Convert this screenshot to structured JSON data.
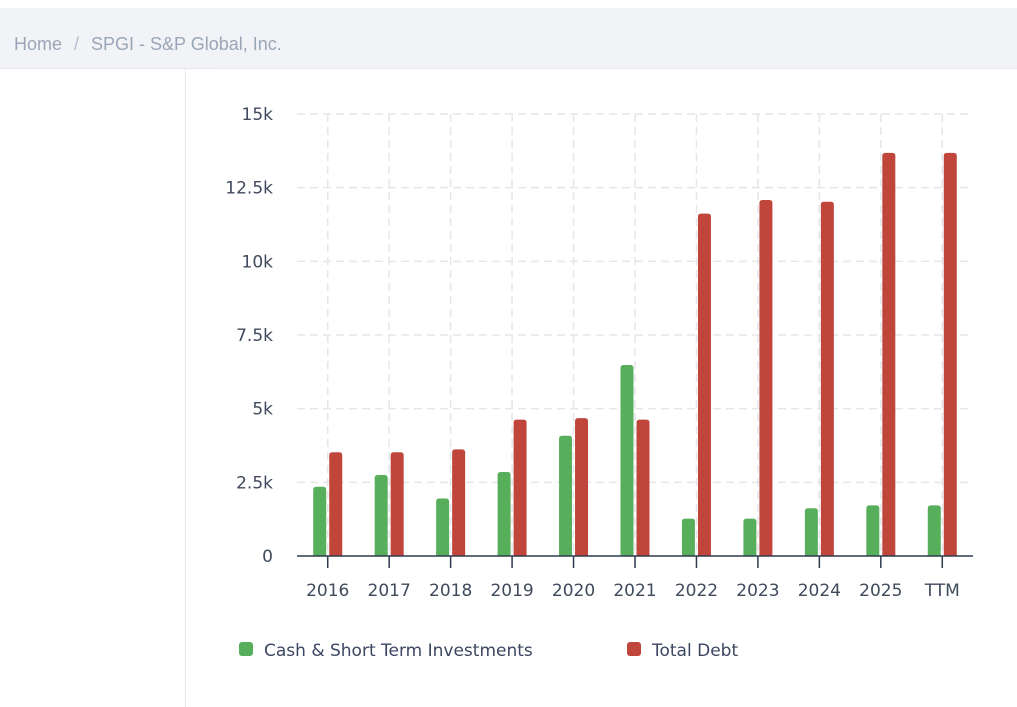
{
  "breadcrumb": {
    "home": "Home",
    "separator": "/",
    "current": "SPGI - S&P Global, Inc."
  },
  "chart_data": {
    "type": "bar",
    "title": "",
    "xlabel": "",
    "ylabel": "",
    "categories": [
      "2016",
      "2017",
      "2018",
      "2019",
      "2020",
      "2021",
      "2022",
      "2023",
      "2024",
      "2025",
      "TTM"
    ],
    "series": [
      {
        "name": "Cash & Short Term Investments",
        "color": "#57ae5b",
        "values": [
          2350,
          2750,
          1950,
          2850,
          4080,
          6480,
          1270,
          1270,
          1620,
          1720,
          1720
        ]
      },
      {
        "name": "Total Debt",
        "color": "#c0453a",
        "values": [
          3520,
          3520,
          3620,
          4630,
          4680,
          4630,
          11620,
          12080,
          12020,
          13680,
          13680
        ]
      }
    ],
    "ylim": [
      0,
      15000
    ],
    "yticks": [
      0,
      2500,
      5000,
      7500,
      10000,
      12500,
      15000
    ],
    "ytick_labels": [
      "0",
      "2.5k",
      "5k",
      "7.5k",
      "10k",
      "12.5k",
      "15k"
    ],
    "grid": true,
    "legend": "bottom-left"
  }
}
